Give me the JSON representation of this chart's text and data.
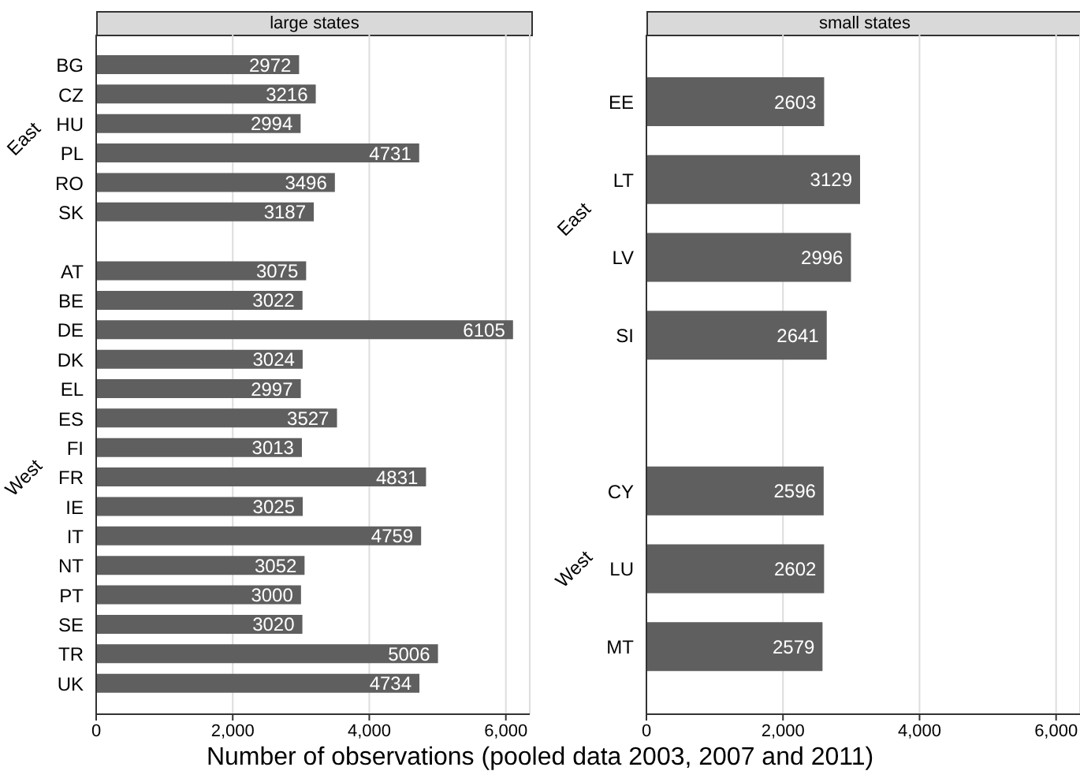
{
  "chart_data": [
    {
      "type": "bar",
      "orientation": "horizontal",
      "title": "large states",
      "xlabel": "Number of observations (pooled data 2003, 2007 and 2011)",
      "categories": [
        "BG",
        "CZ",
        "HU",
        "PL",
        "RO",
        "SK",
        null,
        "AT",
        "BE",
        "DE",
        "DK",
        "EL",
        "ES",
        "FI",
        "FR",
        "IE",
        "IT",
        "NT",
        "PT",
        "SE",
        "TR",
        "UK"
      ],
      "values": [
        2972,
        3216,
        2994,
        4731,
        3496,
        3187,
        null,
        3075,
        3022,
        6105,
        3024,
        2997,
        3527,
        3013,
        4831,
        3025,
        4759,
        3052,
        3000,
        3020,
        5006,
        4734
      ],
      "color": "#5f5f5f",
      "data_labels": true,
      "grid": "x",
      "xlim": [
        0,
        6350
      ],
      "xticks": [
        0,
        {
          "value": 2000,
          "label": "2,000"
        },
        {
          "value": 4000,
          "label": "4,000"
        },
        {
          "value": 6000,
          "label": "6,000"
        }
      ],
      "annotations": [
        "East",
        "West"
      ]
    },
    {
      "type": "bar",
      "orientation": "horizontal",
      "title": "small states",
      "categories": [
        "EE",
        "LT",
        "LV",
        "SI",
        null,
        "CY",
        "LU",
        "MT"
      ],
      "values": [
        2603,
        3129,
        2996,
        2641,
        null,
        2596,
        2602,
        2579
      ],
      "color": "#5f5f5f",
      "data_labels": true,
      "grid": "x",
      "xlim": [
        0,
        6350
      ],
      "xticks": [
        0,
        {
          "value": 2000,
          "label": "2,000"
        },
        {
          "value": 4000,
          "label": "4,000"
        },
        {
          "value": 6000,
          "label": "6,000"
        }
      ],
      "annotations": [
        "East",
        "West"
      ]
    }
  ]
}
